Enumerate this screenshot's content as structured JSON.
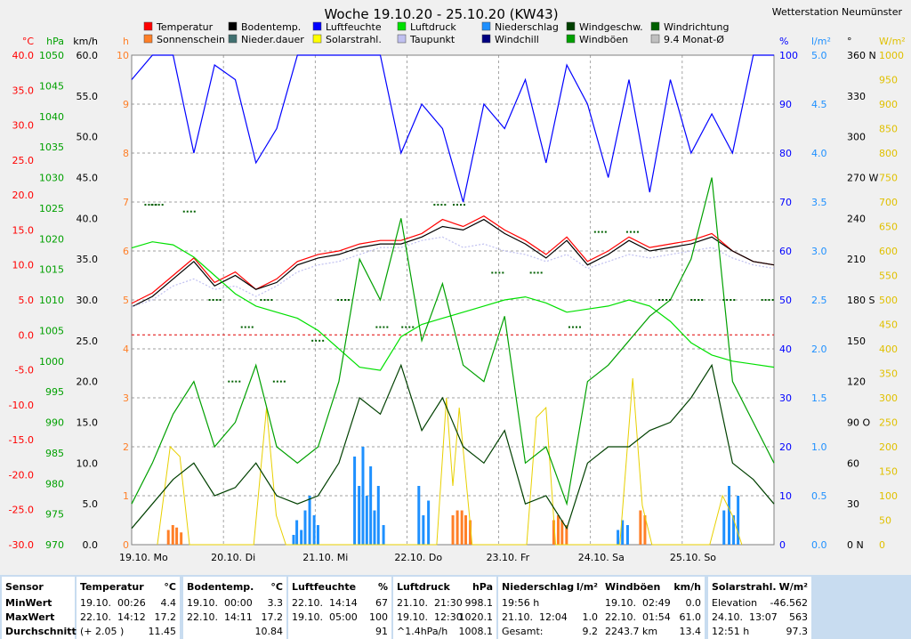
{
  "station": "Wetterstation Neumünster",
  "chart_data": {
    "type": "line",
    "title": "Woche 19.10.20 - 25.10.20 (KW43)",
    "x_labels": [
      "19.10. Mo",
      "20.10. Di",
      "21.10. Mi",
      "22.10. Do",
      "23.10. Fr",
      "24.10. Sa",
      "25.10. So"
    ],
    "legend": [
      {
        "label": "Temperatur",
        "color": "#ff0000"
      },
      {
        "label": "Bodentemp.",
        "color": "#000000"
      },
      {
        "label": "Luftfeuchte",
        "color": "#0000ff"
      },
      {
        "label": "Luftdruck",
        "color": "#00e000"
      },
      {
        "label": "Niederschlag",
        "color": "#1e90ff"
      },
      {
        "label": "Windgeschw.",
        "color": "#004000"
      },
      {
        "label": "Windrichtung",
        "color": "#006000"
      },
      {
        "label": "Sonnenschein",
        "color": "#ff7f27"
      },
      {
        "label": "Nieder.dauer",
        "color": "#407070"
      },
      {
        "label": "Solarstrahl.",
        "color": "#ffff00"
      },
      {
        "label": "Taupunkt",
        "color": "#c0c0f0"
      },
      {
        "label": "Windchill",
        "color": "#000080"
      },
      {
        "label": "Windböen",
        "color": "#00a000"
      },
      {
        "label": "9.4 Monat-Ø",
        "color": "#c0c0c0"
      }
    ],
    "axes": {
      "temp": {
        "unit": "°C",
        "ticks": [
          "40.0",
          "35.0",
          "30.0",
          "25.0",
          "20.0",
          "15.0",
          "10.0",
          "5.0",
          "0.0",
          "-5.0",
          "-10.0",
          "-15.0",
          "-20.0",
          "-25.0",
          "-30.0"
        ],
        "color": "#ff0000",
        "range": [
          -30,
          40
        ]
      },
      "pressure": {
        "unit": "hPa",
        "ticks": [
          "1050",
          "1045",
          "1040",
          "1035",
          "1030",
          "1025",
          "1020",
          "1015",
          "1010",
          "1005",
          "1000",
          "995",
          "990",
          "985",
          "980",
          "975",
          "970"
        ],
        "color": "#00a000",
        "range": [
          970,
          1050
        ]
      },
      "wind": {
        "unit": "km/h",
        "ticks": [
          "60.0",
          "55.0",
          "50.0",
          "45.0",
          "40.0",
          "35.0",
          "30.0",
          "25.0",
          "20.0",
          "15.0",
          "10.0",
          "5.0",
          "0.0"
        ],
        "color": "#000000",
        "range": [
          0,
          60
        ]
      },
      "sun_hours": {
        "unit": "h",
        "ticks": [
          "10",
          "9",
          "8",
          "7",
          "6",
          "5",
          "4",
          "3",
          "2",
          "1",
          "0"
        ],
        "color": "#ff7f27",
        "range": [
          0,
          10
        ]
      },
      "humidity": {
        "unit": "%",
        "ticks": [
          "100",
          "90",
          "80",
          "70",
          "60",
          "50",
          "40",
          "30",
          "20",
          "10",
          "0"
        ],
        "color": "#0000ff",
        "range": [
          0,
          100
        ]
      },
      "rain": {
        "unit": "l/m²",
        "ticks": [
          "5.0",
          "4.5",
          "4.0",
          "3.5",
          "3.0",
          "2.5",
          "2.0",
          "1.5",
          "1.0",
          "0.5",
          "0.0"
        ],
        "color": "#1e90ff",
        "range": [
          0,
          5
        ]
      },
      "direction": {
        "unit": "°",
        "ticks": [
          "360 N",
          "330",
          "300",
          "270 W",
          "240",
          "210",
          "180 S",
          "150",
          "120",
          "90 O",
          "60",
          "30",
          "0 N"
        ],
        "color": "#000000",
        "range": [
          0,
          360
        ]
      },
      "solar": {
        "unit": "W/m²",
        "ticks": [
          "1000",
          "950",
          "900",
          "850",
          "800",
          "750",
          "700",
          "650",
          "600",
          "550",
          "500",
          "450",
          "400",
          "350",
          "300",
          "250",
          "200",
          "150",
          "100",
          "50",
          "0"
        ],
        "color": "#e0c000",
        "range": [
          0,
          1000
        ]
      }
    },
    "series": [
      {
        "name": "Temperatur",
        "axis": "temp",
        "color": "#ff0000",
        "values": [
          4.5,
          6.0,
          8.5,
          11.0,
          7.5,
          9.0,
          6.5,
          8.0,
          10.5,
          11.5,
          12.0,
          13.0,
          13.5,
          13.5,
          14.5,
          16.5,
          15.5,
          17.0,
          15.0,
          13.5,
          11.5,
          14.0,
          10.5,
          12.0,
          14.0,
          12.5,
          13.0,
          13.5,
          14.5,
          12.0,
          10.5,
          10.0
        ]
      },
      {
        "name": "Bodentemp.",
        "axis": "temp",
        "color": "#000000",
        "values": [
          4.0,
          5.5,
          8.0,
          10.5,
          7.0,
          8.5,
          6.5,
          7.5,
          10.0,
          11.0,
          11.5,
          12.5,
          13.0,
          13.0,
          14.0,
          15.5,
          15.0,
          16.5,
          14.5,
          13.0,
          11.0,
          13.5,
          10.0,
          11.5,
          13.5,
          12.0,
          12.5,
          13.0,
          14.0,
          12.0,
          10.5,
          10.0
        ]
      },
      {
        "name": "Taupunkt",
        "axis": "temp",
        "color": "#c0c0f0",
        "values": [
          4.0,
          5.0,
          7.0,
          8.0,
          6.5,
          7.0,
          5.5,
          7.0,
          9.0,
          10.0,
          10.5,
          11.5,
          12.5,
          12.5,
          13.5,
          14.0,
          12.5,
          13.0,
          12.0,
          11.5,
          10.5,
          11.5,
          9.5,
          10.5,
          11.5,
          11.0,
          11.5,
          12.0,
          12.5,
          11.0,
          10.0,
          9.5
        ]
      },
      {
        "name": "Luftfeuchte",
        "axis": "humidity",
        "color": "#0000ff",
        "values": [
          95,
          100,
          100,
          80,
          98,
          95,
          78,
          85,
          100,
          100,
          100,
          100,
          100,
          80,
          90,
          85,
          70,
          90,
          85,
          95,
          78,
          98,
          90,
          75,
          95,
          72,
          95,
          80,
          88,
          80,
          100,
          100
        ]
      },
      {
        "name": "Luftdruck",
        "axis": "pressure",
        "color": "#00e000",
        "values": [
          1018.5,
          1019.5,
          1019.0,
          1017.0,
          1014.0,
          1011.0,
          1009.0,
          1008.0,
          1007.0,
          1005.0,
          1002.0,
          999.0,
          998.5,
          1004.0,
          1006.0,
          1007.0,
          1008.0,
          1009.0,
          1010.0,
          1010.5,
          1009.5,
          1008.0,
          1008.5,
          1009.0,
          1010.0,
          1009.0,
          1006.5,
          1003.0,
          1001.0,
          1000.0,
          999.5,
          999.0
        ]
      },
      {
        "name": "Windböen",
        "axis": "wind",
        "color": "#00a000",
        "values": [
          5,
          10,
          16,
          20,
          12,
          15,
          22,
          12,
          10,
          12,
          20,
          35,
          30,
          40,
          25,
          32,
          22,
          20,
          28,
          10,
          12,
          5,
          20,
          22,
          25,
          28,
          30,
          35,
          45,
          20,
          15,
          10
        ]
      },
      {
        "name": "Windgeschw.",
        "axis": "wind",
        "color": "#004000",
        "values": [
          2,
          5,
          8,
          10,
          6,
          7,
          10,
          6,
          5,
          6,
          10,
          18,
          16,
          22,
          14,
          18,
          12,
          10,
          14,
          5,
          6,
          2,
          10,
          12,
          12,
          14,
          15,
          18,
          22,
          10,
          8,
          5
        ]
      }
    ],
    "rain_bars": [
      {
        "x": 0.25,
        "v": 0.1
      },
      {
        "x": 0.255,
        "v": 0.25
      },
      {
        "x": 0.262,
        "v": 0.15
      },
      {
        "x": 0.268,
        "v": 0.35
      },
      {
        "x": 0.275,
        "v": 0.5
      },
      {
        "x": 0.282,
        "v": 0.3
      },
      {
        "x": 0.288,
        "v": 0.2
      },
      {
        "x": 0.345,
        "v": 0.9
      },
      {
        "x": 0.352,
        "v": 0.6
      },
      {
        "x": 0.358,
        "v": 1.0
      },
      {
        "x": 0.364,
        "v": 0.5
      },
      {
        "x": 0.37,
        "v": 0.8
      },
      {
        "x": 0.376,
        "v": 0.35
      },
      {
        "x": 0.382,
        "v": 0.6
      },
      {
        "x": 0.39,
        "v": 0.2
      },
      {
        "x": 0.445,
        "v": 0.6
      },
      {
        "x": 0.452,
        "v": 0.3
      },
      {
        "x": 0.46,
        "v": 0.45
      },
      {
        "x": 0.755,
        "v": 0.15
      },
      {
        "x": 0.762,
        "v": 0.25
      },
      {
        "x": 0.77,
        "v": 0.2
      },
      {
        "x": 0.92,
        "v": 0.35
      },
      {
        "x": 0.928,
        "v": 0.6
      },
      {
        "x": 0.935,
        "v": 0.3
      },
      {
        "x": 0.942,
        "v": 0.5
      }
    ],
    "sun_bars": [
      {
        "x": 0.055,
        "v": 0.3
      },
      {
        "x": 0.062,
        "v": 0.4
      },
      {
        "x": 0.068,
        "v": 0.35
      },
      {
        "x": 0.075,
        "v": 0.25
      },
      {
        "x": 0.498,
        "v": 0.6
      },
      {
        "x": 0.505,
        "v": 0.7
      },
      {
        "x": 0.512,
        "v": 0.7
      },
      {
        "x": 0.518,
        "v": 0.6
      },
      {
        "x": 0.525,
        "v": 0.5
      },
      {
        "x": 0.655,
        "v": 0.5
      },
      {
        "x": 0.662,
        "v": 0.6
      },
      {
        "x": 0.668,
        "v": 0.5
      },
      {
        "x": 0.675,
        "v": 0.4
      },
      {
        "x": 0.79,
        "v": 0.7
      },
      {
        "x": 0.797,
        "v": 0.6
      }
    ],
    "solar_curve": [
      {
        "x": 0.04,
        "v": 0
      },
      {
        "x": 0.06,
        "v": 200
      },
      {
        "x": 0.075,
        "v": 180
      },
      {
        "x": 0.09,
        "v": 0
      },
      {
        "x": 0.19,
        "v": 0
      },
      {
        "x": 0.21,
        "v": 280
      },
      {
        "x": 0.225,
        "v": 60
      },
      {
        "x": 0.24,
        "v": 0
      },
      {
        "x": 0.475,
        "v": 0
      },
      {
        "x": 0.49,
        "v": 300
      },
      {
        "x": 0.5,
        "v": 120
      },
      {
        "x": 0.51,
        "v": 280
      },
      {
        "x": 0.53,
        "v": 0
      },
      {
        "x": 0.615,
        "v": 0
      },
      {
        "x": 0.63,
        "v": 260
      },
      {
        "x": 0.645,
        "v": 280
      },
      {
        "x": 0.66,
        "v": 0
      },
      {
        "x": 0.76,
        "v": 0
      },
      {
        "x": 0.78,
        "v": 340
      },
      {
        "x": 0.795,
        "v": 80
      },
      {
        "x": 0.81,
        "v": 0
      },
      {
        "x": 0.9,
        "v": 0
      },
      {
        "x": 0.92,
        "v": 100
      },
      {
        "x": 0.935,
        "v": 60
      },
      {
        "x": 0.95,
        "v": 0
      }
    ],
    "wind_dir_dots": [
      {
        "x": 0.02,
        "v": 250
      },
      {
        "x": 0.03,
        "v": 250
      },
      {
        "x": 0.08,
        "v": 245
      },
      {
        "x": 0.12,
        "v": 180
      },
      {
        "x": 0.15,
        "v": 120
      },
      {
        "x": 0.17,
        "v": 160
      },
      {
        "x": 0.2,
        "v": 180
      },
      {
        "x": 0.22,
        "v": 120
      },
      {
        "x": 0.28,
        "v": 150
      },
      {
        "x": 0.32,
        "v": 180
      },
      {
        "x": 0.38,
        "v": 160
      },
      {
        "x": 0.42,
        "v": 160
      },
      {
        "x": 0.47,
        "v": 250
      },
      {
        "x": 0.5,
        "v": 250
      },
      {
        "x": 0.56,
        "v": 200
      },
      {
        "x": 0.62,
        "v": 200
      },
      {
        "x": 0.68,
        "v": 160
      },
      {
        "x": 0.72,
        "v": 230
      },
      {
        "x": 0.77,
        "v": 230
      },
      {
        "x": 0.82,
        "v": 180
      },
      {
        "x": 0.87,
        "v": 180
      },
      {
        "x": 0.92,
        "v": 180
      },
      {
        "x": 0.98,
        "v": 180
      }
    ]
  },
  "stats": {
    "row_labels": [
      "Sensor",
      "MinWert",
      "MaxWert",
      "Durchschnitt"
    ],
    "columns": [
      {
        "title": "Temperatur",
        "unit": "°C",
        "rows": [
          [
            "19.10.",
            "00:26",
            "4.4"
          ],
          [
            "22.10.",
            "14:12",
            "17.2"
          ],
          [
            "(+ 2.05 )",
            "",
            "11.45"
          ]
        ]
      },
      {
        "title": "Bodentemp.",
        "unit": "°C",
        "rows": [
          [
            "19.10.",
            "00:00",
            "3.3"
          ],
          [
            "22.10.",
            "14:11",
            "17.2"
          ],
          [
            "",
            "",
            "10.84"
          ]
        ]
      },
      {
        "title": "Luftfeuchte",
        "unit": "%",
        "rows": [
          [
            "22.10.",
            "14:14",
            "67"
          ],
          [
            "19.10.",
            "05:00",
            "100"
          ],
          [
            "",
            "",
            "91"
          ]
        ]
      },
      {
        "title": "Luftdruck",
        "unit": "hPa",
        "rows": [
          [
            "21.10.",
            "21:30",
            "998.1"
          ],
          [
            "19.10.",
            "12:30",
            "1020.1"
          ],
          [
            "^1.4hPa/h",
            "",
            "1008.1"
          ]
        ]
      },
      {
        "title": "Niederschlag",
        "unit": "l/m²",
        "rows": [
          [
            "19:56 h",
            "",
            ""
          ],
          [
            "21.10.",
            "12:04",
            "1.0"
          ],
          [
            "Gesamt:",
            "",
            "9.2"
          ]
        ]
      },
      {
        "title": "Windböen",
        "unit": "km/h",
        "rows": [
          [
            "19.10.",
            "02:49",
            "0.0"
          ],
          [
            "22.10.",
            "01:54",
            "61.0"
          ],
          [
            "2243.7 km",
            "",
            "13.4"
          ]
        ]
      },
      {
        "title": "Solarstrahl.",
        "unit": "W/m²",
        "rows": [
          [
            "Elevation",
            "",
            "-46.562"
          ],
          [
            "24.10.",
            "13:07",
            "563"
          ],
          [
            "12:51 h",
            "",
            "97.3"
          ]
        ]
      }
    ]
  }
}
